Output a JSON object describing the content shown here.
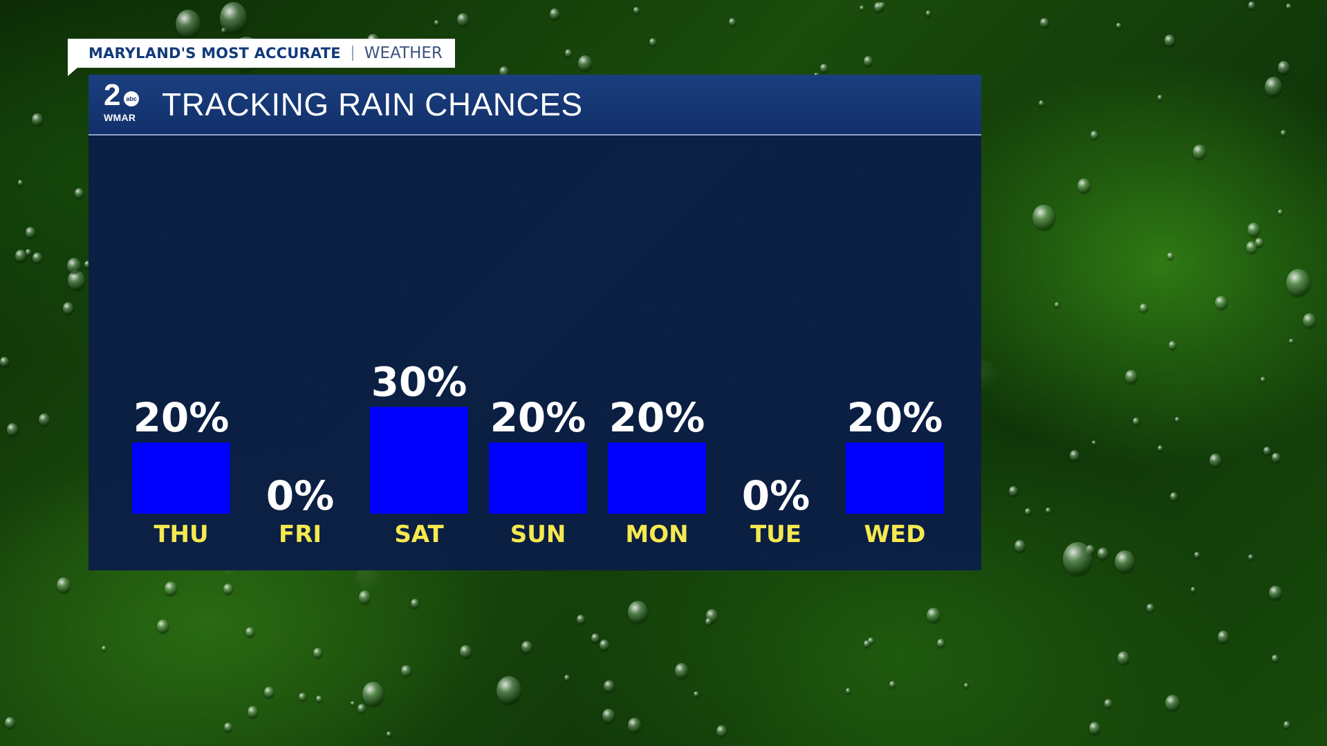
{
  "brand": {
    "tagline": "MARYLAND'S MOST ACCURATE",
    "section": "WEATHER"
  },
  "logo": {
    "channel": "2",
    "network": "abc",
    "call_letters": "WMAR"
  },
  "header": {
    "title": "TRACKING RAIN CHANCES"
  },
  "colors": {
    "bar": "#0000ff",
    "value_text": "#ffffff",
    "day_text": "#f5e94f",
    "panel": "#0b1d47",
    "header": "#1b3f7e"
  },
  "chart_data": {
    "type": "bar",
    "title": "TRACKING RAIN CHANCES",
    "categories": [
      "THU",
      "FRI",
      "SAT",
      "SUN",
      "MON",
      "TUE",
      "WED"
    ],
    "values": [
      20,
      0,
      30,
      20,
      20,
      0,
      20
    ],
    "value_labels": [
      "20%",
      "0%",
      "30%",
      "20%",
      "20%",
      "0%",
      "20%"
    ],
    "unit": "%",
    "grid": false,
    "legend": "none"
  }
}
